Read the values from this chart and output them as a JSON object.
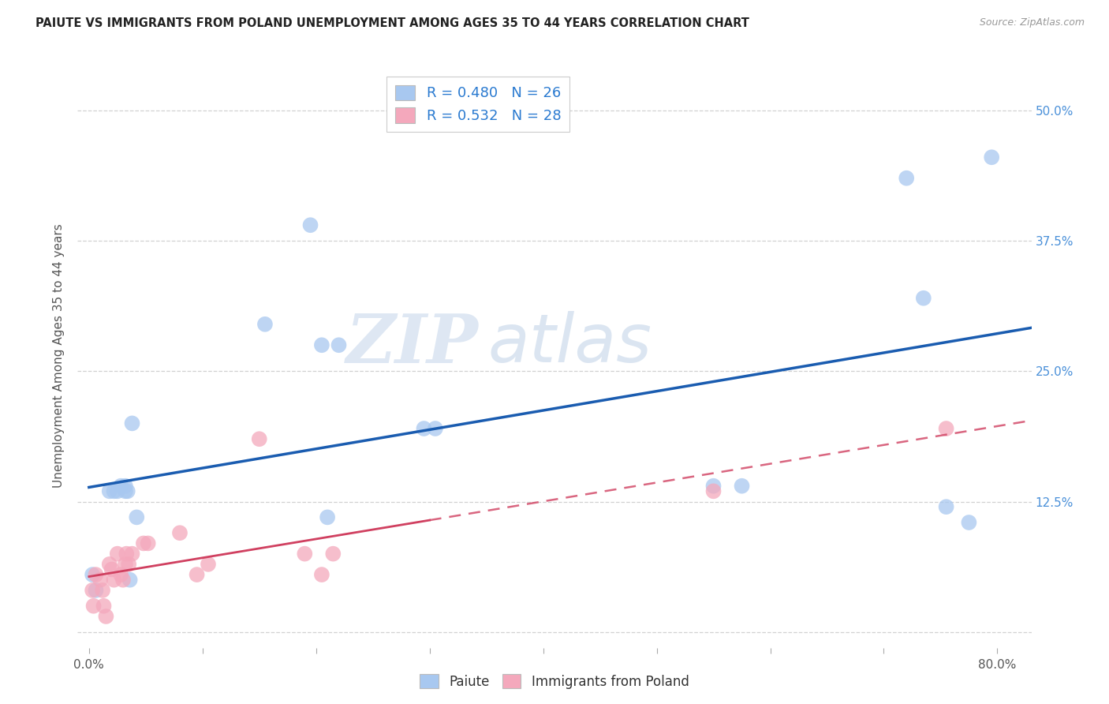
{
  "title": "PAIUTE VS IMMIGRANTS FROM POLAND UNEMPLOYMENT AMONG AGES 35 TO 44 YEARS CORRELATION CHART",
  "source": "Source: ZipAtlas.com",
  "ylabel": "Unemployment Among Ages 35 to 44 years",
  "xlabel": "",
  "legend_label1": "Paiute",
  "legend_label2": "Immigrants from Poland",
  "r1": 0.48,
  "n1": 26,
  "r2": 0.532,
  "n2": 28,
  "xlim": [
    -0.01,
    0.83
  ],
  "ylim": [
    -0.015,
    0.545
  ],
  "xticks": [
    0.0,
    0.1,
    0.2,
    0.3,
    0.4,
    0.5,
    0.6,
    0.7,
    0.8
  ],
  "yticks": [
    0.0,
    0.125,
    0.25,
    0.375,
    0.5
  ],
  "ytick_labels_right": [
    "",
    "12.5%",
    "25.0%",
    "37.5%",
    "50.0%"
  ],
  "xtick_labels": [
    "0.0%",
    "",
    "",
    "",
    "",
    "",
    "",
    "",
    "80.0%"
  ],
  "color_blue": "#a8c8f0",
  "color_pink": "#f4a8bc",
  "line_blue": "#1a5cb0",
  "line_pink": "#d04060",
  "scatter_blue_x": [
    0.003,
    0.006,
    0.018,
    0.022,
    0.025,
    0.028,
    0.032,
    0.032,
    0.034,
    0.036,
    0.038,
    0.042,
    0.155,
    0.195,
    0.205,
    0.21,
    0.22,
    0.295,
    0.305,
    0.55,
    0.575,
    0.72,
    0.735,
    0.755,
    0.775,
    0.795
  ],
  "scatter_blue_y": [
    0.055,
    0.04,
    0.135,
    0.135,
    0.135,
    0.14,
    0.135,
    0.14,
    0.135,
    0.05,
    0.2,
    0.11,
    0.295,
    0.39,
    0.275,
    0.11,
    0.275,
    0.195,
    0.195,
    0.14,
    0.14,
    0.435,
    0.32,
    0.12,
    0.105,
    0.455
  ],
  "scatter_pink_x": [
    0.003,
    0.004,
    0.006,
    0.01,
    0.012,
    0.013,
    0.015,
    0.018,
    0.02,
    0.022,
    0.025,
    0.028,
    0.03,
    0.032,
    0.033,
    0.035,
    0.038,
    0.048,
    0.052,
    0.08,
    0.095,
    0.105,
    0.15,
    0.19,
    0.205,
    0.215,
    0.55,
    0.755
  ],
  "scatter_pink_y": [
    0.04,
    0.025,
    0.055,
    0.05,
    0.04,
    0.025,
    0.015,
    0.065,
    0.06,
    0.05,
    0.075,
    0.055,
    0.05,
    0.065,
    0.075,
    0.065,
    0.075,
    0.085,
    0.085,
    0.095,
    0.055,
    0.065,
    0.185,
    0.075,
    0.055,
    0.075,
    0.135,
    0.195
  ],
  "watermark_zip": "ZIP",
  "watermark_atlas": "atlas",
  "background_color": "#ffffff",
  "grid_color": "#cccccc"
}
